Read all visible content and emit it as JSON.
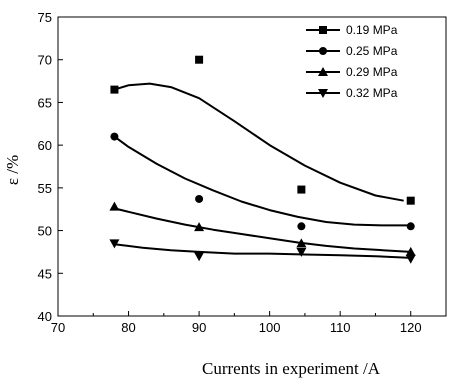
{
  "chart_data": {
    "type": "scatter",
    "title": "",
    "xlabel": "Currents in experiment /A",
    "ylabel": "ε /%",
    "xlim": [
      70,
      125
    ],
    "ylim": [
      40,
      75
    ],
    "xticks": [
      70,
      80,
      90,
      100,
      110,
      120
    ],
    "yticks": [
      40,
      45,
      50,
      55,
      60,
      65,
      70,
      75
    ],
    "grid": false,
    "legend_position": "top-right",
    "series": [
      {
        "name": "0.19 MPa",
        "marker": "square",
        "points": [
          [
            78,
            66.5
          ],
          [
            90,
            70
          ],
          [
            104.5,
            54.8
          ],
          [
            120,
            53.5
          ]
        ],
        "fit": [
          [
            78,
            66.5
          ],
          [
            80,
            67
          ],
          [
            83,
            67.2
          ],
          [
            86,
            66.8
          ],
          [
            90,
            65.5
          ],
          [
            95,
            62.8
          ],
          [
            100,
            60
          ],
          [
            105,
            57.6
          ],
          [
            110,
            55.6
          ],
          [
            115,
            54.1
          ],
          [
            119,
            53.5
          ]
        ]
      },
      {
        "name": "0.25 MPa",
        "marker": "circle",
        "points": [
          [
            78,
            61
          ],
          [
            90,
            53.7
          ],
          [
            104.5,
            50.5
          ],
          [
            120,
            50.5
          ]
        ],
        "fit": [
          [
            78,
            61
          ],
          [
            80,
            59.8
          ],
          [
            84,
            57.8
          ],
          [
            88,
            56.1
          ],
          [
            92,
            54.7
          ],
          [
            96,
            53.4
          ],
          [
            100,
            52.4
          ],
          [
            104,
            51.6
          ],
          [
            108,
            51
          ],
          [
            112,
            50.7
          ],
          [
            116,
            50.6
          ],
          [
            120,
            50.6
          ]
        ]
      },
      {
        "name": "0.29 MPa",
        "marker": "triangle-up",
        "points": [
          [
            78,
            52.8
          ],
          [
            90,
            50.4
          ],
          [
            104.5,
            48.5
          ],
          [
            120,
            47.5
          ]
        ],
        "fit": [
          [
            78,
            52.6
          ],
          [
            80,
            52.2
          ],
          [
            84,
            51.4
          ],
          [
            88,
            50.7
          ],
          [
            92,
            50.1
          ],
          [
            96,
            49.6
          ],
          [
            100,
            49.1
          ],
          [
            104,
            48.6
          ],
          [
            108,
            48.2
          ],
          [
            112,
            47.9
          ],
          [
            116,
            47.7
          ],
          [
            120,
            47.5
          ]
        ]
      },
      {
        "name": "0.32 MPa",
        "marker": "triangle-down",
        "points": [
          [
            78,
            48.5
          ],
          [
            90,
            47
          ],
          [
            104.5,
            47.5
          ],
          [
            120,
            46.7
          ]
        ],
        "fit": [
          [
            78,
            48.4
          ],
          [
            82,
            48
          ],
          [
            86,
            47.7
          ],
          [
            90,
            47.5
          ],
          [
            95,
            47.3
          ],
          [
            100,
            47.3
          ],
          [
            105,
            47.2
          ],
          [
            110,
            47.1
          ],
          [
            115,
            47
          ],
          [
            120,
            46.8
          ]
        ]
      }
    ]
  }
}
